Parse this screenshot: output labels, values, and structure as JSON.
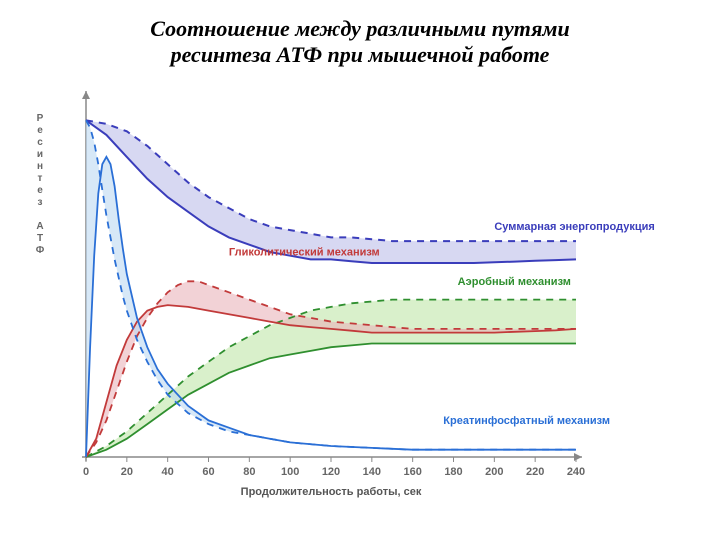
{
  "title_line1": "Соотношение между различными путями",
  "title_line2": "ресинтеза АТФ при мышечной работе",
  "chart": {
    "type": "line-area",
    "background_color": "#ffffff",
    "axis_color": "#888888",
    "grid_color": "#e5e5e5",
    "xlim": [
      0,
      240
    ],
    "ylim": [
      0,
      100
    ],
    "xtick_step": 20,
    "xlabel": "Продолжительность работы, сек",
    "ylabel": "Ресинтез АТФ",
    "xlabel_fontsize": 11,
    "label_color": "#555555",
    "tick_fontsize": 11
  },
  "series": {
    "total": {
      "label": "Суммарная энергопродукция",
      "color": "#3a3dbb",
      "fill": "#b7b8e8",
      "fill_opacity": 0.55,
      "line_width": 2,
      "dash": "7 6",
      "solid": [
        [
          0,
          92
        ],
        [
          10,
          88
        ],
        [
          20,
          82
        ],
        [
          30,
          76
        ],
        [
          40,
          71
        ],
        [
          50,
          67
        ],
        [
          60,
          63
        ],
        [
          70,
          60
        ],
        [
          80,
          58
        ],
        [
          90,
          56
        ],
        [
          100,
          55
        ],
        [
          110,
          54
        ],
        [
          120,
          54
        ],
        [
          130,
          53.5
        ],
        [
          140,
          53
        ],
        [
          150,
          53
        ],
        [
          160,
          53
        ],
        [
          170,
          53
        ],
        [
          180,
          53
        ],
        [
          190,
          53
        ],
        [
          200,
          53.2
        ],
        [
          210,
          53.4
        ],
        [
          220,
          53.6
        ],
        [
          230,
          53.8
        ],
        [
          240,
          54
        ]
      ],
      "dashed": [
        [
          0,
          92
        ],
        [
          10,
          91
        ],
        [
          20,
          89
        ],
        [
          30,
          85
        ],
        [
          40,
          80
        ],
        [
          50,
          75
        ],
        [
          60,
          71
        ],
        [
          70,
          68
        ],
        [
          80,
          65
        ],
        [
          90,
          63
        ],
        [
          100,
          62
        ],
        [
          110,
          61
        ],
        [
          120,
          60
        ],
        [
          130,
          60
        ],
        [
          140,
          59.5
        ],
        [
          150,
          59
        ],
        [
          160,
          59
        ],
        [
          170,
          59
        ],
        [
          180,
          59
        ],
        [
          190,
          59
        ],
        [
          200,
          59
        ],
        [
          210,
          59
        ],
        [
          220,
          59
        ],
        [
          230,
          59
        ],
        [
          240,
          59
        ]
      ],
      "label_pos": {
        "x": 200,
        "y": 62
      }
    },
    "glycolytic": {
      "label": "Гликолитический механизм",
      "color": "#c23a3a",
      "fill": "#e9b4bb",
      "fill_opacity": 0.6,
      "line_width": 1.8,
      "dash": "7 6",
      "solid": [
        [
          0,
          0
        ],
        [
          5,
          5
        ],
        [
          10,
          15
        ],
        [
          15,
          25
        ],
        [
          20,
          32
        ],
        [
          25,
          37
        ],
        [
          30,
          40
        ],
        [
          35,
          41
        ],
        [
          40,
          41.5
        ],
        [
          50,
          41
        ],
        [
          60,
          40
        ],
        [
          70,
          39
        ],
        [
          80,
          38
        ],
        [
          90,
          37
        ],
        [
          100,
          36
        ],
        [
          110,
          35.5
        ],
        [
          120,
          35
        ],
        [
          130,
          34.5
        ],
        [
          140,
          34
        ],
        [
          150,
          34
        ],
        [
          160,
          34
        ],
        [
          170,
          34
        ],
        [
          180,
          34
        ],
        [
          190,
          34
        ],
        [
          200,
          34
        ],
        [
          210,
          34.2
        ],
        [
          220,
          34.4
        ],
        [
          230,
          34.6
        ],
        [
          240,
          35
        ]
      ],
      "dashed": [
        [
          0,
          0
        ],
        [
          5,
          4
        ],
        [
          10,
          10
        ],
        [
          15,
          18
        ],
        [
          20,
          26
        ],
        [
          25,
          33
        ],
        [
          30,
          38
        ],
        [
          35,
          42
        ],
        [
          40,
          45
        ],
        [
          45,
          47
        ],
        [
          50,
          48
        ],
        [
          55,
          48
        ],
        [
          60,
          47
        ],
        [
          70,
          45
        ],
        [
          80,
          43
        ],
        [
          90,
          41
        ],
        [
          100,
          39
        ],
        [
          110,
          38
        ],
        [
          120,
          37
        ],
        [
          130,
          36.5
        ],
        [
          140,
          36
        ],
        [
          150,
          35.5
        ],
        [
          160,
          35
        ],
        [
          170,
          35
        ],
        [
          180,
          35
        ],
        [
          190,
          35
        ],
        [
          200,
          35
        ],
        [
          210,
          35
        ],
        [
          220,
          35
        ],
        [
          230,
          35
        ],
        [
          240,
          35
        ]
      ],
      "label_pos": {
        "x": 70,
        "y": 55
      }
    },
    "aerobic": {
      "label": "Аэробный механизм",
      "color": "#2f8f2f",
      "fill": "#bfe6a8",
      "fill_opacity": 0.6,
      "line_width": 1.8,
      "dash": "7 6",
      "solid": [
        [
          0,
          0
        ],
        [
          10,
          2
        ],
        [
          20,
          5
        ],
        [
          30,
          9
        ],
        [
          40,
          13
        ],
        [
          50,
          17
        ],
        [
          60,
          20
        ],
        [
          70,
          23
        ],
        [
          80,
          25
        ],
        [
          90,
          27
        ],
        [
          100,
          28
        ],
        [
          110,
          29
        ],
        [
          120,
          30
        ],
        [
          130,
          30.5
        ],
        [
          140,
          31
        ],
        [
          150,
          31
        ],
        [
          160,
          31
        ],
        [
          170,
          31
        ],
        [
          180,
          31
        ],
        [
          190,
          31
        ],
        [
          200,
          31
        ],
        [
          210,
          31
        ],
        [
          220,
          31
        ],
        [
          230,
          31
        ],
        [
          240,
          31
        ]
      ],
      "dashed": [
        [
          0,
          0
        ],
        [
          10,
          3
        ],
        [
          20,
          7
        ],
        [
          30,
          12
        ],
        [
          40,
          17
        ],
        [
          50,
          22
        ],
        [
          60,
          26
        ],
        [
          70,
          30
        ],
        [
          80,
          33
        ],
        [
          90,
          36
        ],
        [
          100,
          38
        ],
        [
          110,
          40
        ],
        [
          120,
          41
        ],
        [
          130,
          42
        ],
        [
          140,
          42.5
        ],
        [
          150,
          43
        ],
        [
          160,
          43
        ],
        [
          170,
          43
        ],
        [
          180,
          43
        ],
        [
          190,
          43
        ],
        [
          200,
          43
        ],
        [
          210,
          43
        ],
        [
          220,
          43
        ],
        [
          230,
          43
        ],
        [
          240,
          43
        ]
      ],
      "label_pos": {
        "x": 182,
        "y": 47
      }
    },
    "creatine": {
      "label": "Креатинфосфатный механизм",
      "color": "#2a6fd6",
      "fill": "#bcd9f2",
      "fill_opacity": 0.6,
      "line_width": 1.8,
      "dash": "7 6",
      "solid": [
        [
          0,
          0
        ],
        [
          2,
          30
        ],
        [
          4,
          55
        ],
        [
          6,
          72
        ],
        [
          8,
          80
        ],
        [
          10,
          82
        ],
        [
          12,
          80
        ],
        [
          14,
          74
        ],
        [
          16,
          65
        ],
        [
          18,
          57
        ],
        [
          20,
          50
        ],
        [
          25,
          38
        ],
        [
          30,
          30
        ],
        [
          35,
          24
        ],
        [
          40,
          20
        ],
        [
          50,
          14
        ],
        [
          60,
          10
        ],
        [
          70,
          8
        ],
        [
          80,
          6
        ],
        [
          90,
          5
        ],
        [
          100,
          4
        ],
        [
          120,
          3
        ],
        [
          140,
          2.5
        ],
        [
          160,
          2
        ],
        [
          180,
          2
        ],
        [
          200,
          2
        ],
        [
          220,
          2
        ],
        [
          240,
          2
        ]
      ],
      "dashed": [
        [
          0,
          92
        ],
        [
          2,
          90
        ],
        [
          4,
          86
        ],
        [
          6,
          80
        ],
        [
          8,
          73
        ],
        [
          10,
          66
        ],
        [
          12,
          60
        ],
        [
          14,
          54
        ],
        [
          16,
          49
        ],
        [
          18,
          44
        ],
        [
          20,
          40
        ],
        [
          25,
          32
        ],
        [
          30,
          26
        ],
        [
          35,
          21
        ],
        [
          40,
          17
        ],
        [
          50,
          12
        ],
        [
          60,
          9
        ],
        [
          70,
          7
        ],
        [
          80,
          6
        ],
        [
          90,
          5
        ],
        [
          100,
          4
        ],
        [
          120,
          3
        ],
        [
          140,
          2.5
        ],
        [
          160,
          2
        ],
        [
          180,
          2
        ],
        [
          200,
          2
        ],
        [
          220,
          2
        ],
        [
          240,
          2
        ]
      ],
      "label_pos": {
        "x": 175,
        "y": 9
      }
    }
  }
}
